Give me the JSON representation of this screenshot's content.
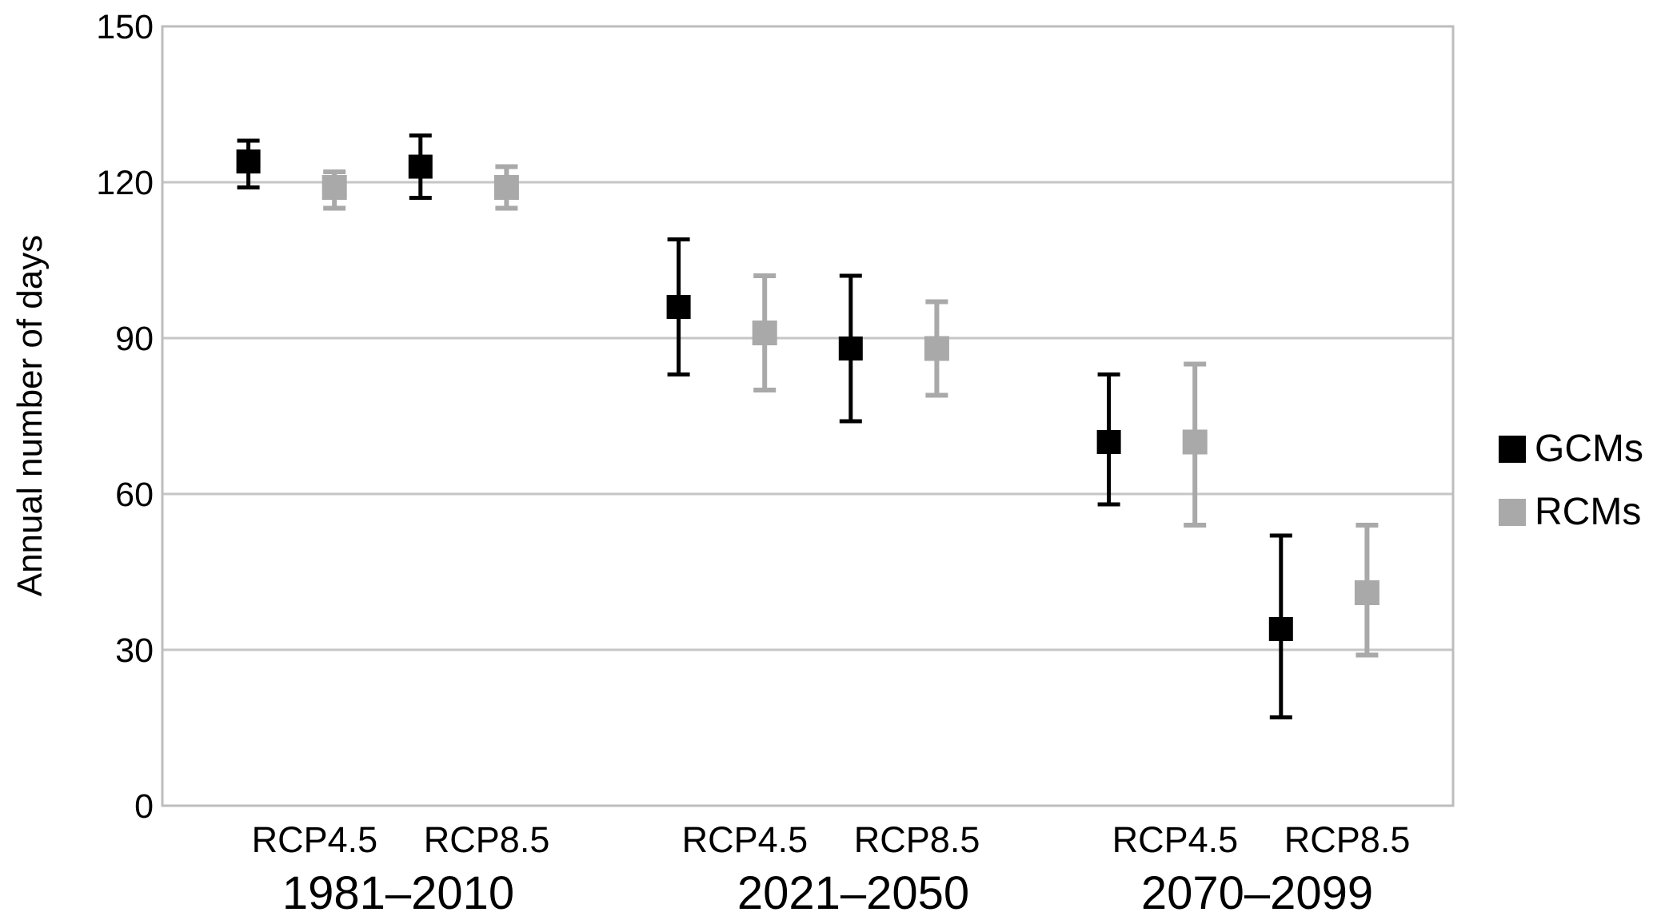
{
  "chart_data": {
    "type": "scatter",
    "title": "",
    "xlabel": "",
    "ylabel": "Annual number of days",
    "ylim": [
      0,
      150
    ],
    "yticks": [
      0,
      30,
      60,
      90,
      120,
      150
    ],
    "grid": "horizontal",
    "legend_position": "right-middle",
    "marker": "square",
    "error_bars": true,
    "x_groups": [
      {
        "label": "1981–2010",
        "scenarios": [
          "RCP4.5",
          "RCP8.5"
        ]
      },
      {
        "label": "2021–2050",
        "scenarios": [
          "RCP4.5",
          "RCP8.5"
        ]
      },
      {
        "label": "2070–2099",
        "scenarios": [
          "RCP4.5",
          "RCP8.5"
        ]
      }
    ],
    "series": [
      {
        "name": "GCMs",
        "color": "#000000",
        "points": [
          {
            "period": "1981–2010",
            "scenario": "RCP4.5",
            "mean": 124,
            "lo": 119,
            "hi": 128
          },
          {
            "period": "1981–2010",
            "scenario": "RCP8.5",
            "mean": 123,
            "lo": 117,
            "hi": 129
          },
          {
            "period": "2021–2050",
            "scenario": "RCP4.5",
            "mean": 96,
            "lo": 83,
            "hi": 109
          },
          {
            "period": "2021–2050",
            "scenario": "RCP8.5",
            "mean": 88,
            "lo": 74,
            "hi": 102
          },
          {
            "period": "2070–2099",
            "scenario": "RCP4.5",
            "mean": 70,
            "lo": 58,
            "hi": 83
          },
          {
            "period": "2070–2099",
            "scenario": "RCP8.5",
            "mean": 34,
            "lo": 17,
            "hi": 52
          }
        ]
      },
      {
        "name": "RCMs",
        "color": "#a9a9a9",
        "points": [
          {
            "period": "1981–2010",
            "scenario": "RCP4.5",
            "mean": 119,
            "lo": 115,
            "hi": 122
          },
          {
            "period": "1981–2010",
            "scenario": "RCP8.5",
            "mean": 119,
            "lo": 115,
            "hi": 123
          },
          {
            "period": "2021–2050",
            "scenario": "RCP4.5",
            "mean": 91,
            "lo": 80,
            "hi": 102
          },
          {
            "period": "2021–2050",
            "scenario": "RCP8.5",
            "mean": 88,
            "lo": 79,
            "hi": 97
          },
          {
            "period": "2070–2099",
            "scenario": "RCP4.5",
            "mean": 70,
            "lo": 54,
            "hi": 85
          },
          {
            "period": "2070–2099",
            "scenario": "RCP8.5",
            "mean": 41,
            "lo": 29,
            "hi": 54
          }
        ]
      }
    ],
    "colors": {
      "grid": "#c6c6c6",
      "frame": "#bdbdbd",
      "background": "#ffffff"
    }
  }
}
